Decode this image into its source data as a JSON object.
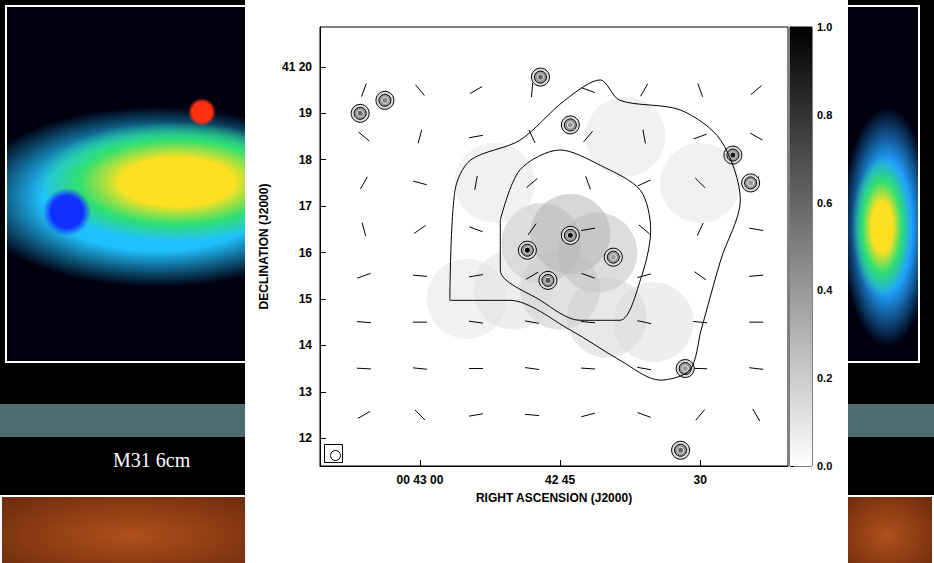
{
  "chart_data": {
    "type": "polarization_map",
    "xlabel": "RIGHT ASCENSION (J2000)",
    "ylabel": "DECLINATION (J2000)",
    "xlim": [
      70.7,
      20.6
    ],
    "xticks": [
      {
        "value": 60,
        "label": "00 43 00"
      },
      {
        "value": 45,
        "label": "42 45"
      },
      30
    ],
    "ylim": [
      11.4,
      20.86
    ],
    "yticks": [
      12,
      13,
      14,
      15,
      16,
      17,
      18,
      19,
      {
        "value": 20,
        "label": "41 20"
      }
    ],
    "colorbar": {
      "range": [
        0,
        1
      ],
      "ticks": [
        {
          "value": 0,
          "label": "0.0"
        },
        {
          "value": 0.2,
          "label": "0.2"
        },
        {
          "value": 0.4,
          "label": "0.4"
        },
        {
          "value": 0.6,
          "label": "0.6"
        },
        {
          "value": 0.8,
          "label": "0.8"
        },
        {
          "value": 1,
          "label": "1.0"
        }
      ]
    },
    "emission": [
      [
        43.9,
        16.4,
        0.35
      ],
      [
        47,
        16.2,
        0.3
      ],
      [
        41,
        16.0,
        0.3
      ],
      [
        45,
        15.2,
        0.25
      ],
      [
        40,
        14.6,
        0.2
      ],
      [
        50,
        15.2,
        0.15
      ],
      [
        35,
        14.5,
        0.15
      ],
      [
        52,
        17.5,
        0.12
      ],
      [
        38,
        18.5,
        0.12
      ],
      [
        30,
        17.5,
        0.12
      ],
      [
        55,
        15.0,
        0.12
      ]
    ],
    "sources": [
      [
        66.4,
        19.0,
        0.6
      ],
      [
        63.75,
        19.28,
        0.5
      ],
      [
        47.1,
        19.78,
        0.6
      ],
      [
        43.9,
        18.75,
        0.4
      ],
      [
        26.5,
        18.1,
        0.9
      ],
      [
        24.6,
        17.5,
        0.4
      ],
      [
        48.5,
        16.05,
        1.0
      ],
      [
        43.9,
        16.37,
        1.0
      ],
      [
        46.3,
        15.4,
        0.7
      ],
      [
        39.3,
        15.9,
        0.4
      ],
      [
        31.6,
        13.5,
        0.4
      ],
      [
        32.1,
        11.74,
        0.6
      ]
    ],
    "contours": [
      [
        [
          56.8,
          14.97
        ],
        [
          56.25,
          17.34
        ],
        [
          54.6,
          17.99
        ],
        [
          49.3,
          18.42
        ],
        [
          44.5,
          19.28
        ],
        [
          40.7,
          19.72
        ],
        [
          38.6,
          19.28
        ],
        [
          32.1,
          19.07
        ],
        [
          27.8,
          18.42
        ],
        [
          25.7,
          17.13
        ],
        [
          27.8,
          15.84
        ],
        [
          29.9,
          14.33
        ],
        [
          31.1,
          13.47
        ],
        [
          34.3,
          13.25
        ],
        [
          38.6,
          13.68
        ],
        [
          43.9,
          14.33
        ],
        [
          50.4,
          14.97
        ]
      ],
      [
        [
          51.4,
          16.7
        ],
        [
          49.3,
          17.78
        ],
        [
          45.0,
          18.21
        ],
        [
          40.7,
          17.88
        ],
        [
          36.4,
          17.34
        ],
        [
          35.3,
          16.48
        ],
        [
          36.4,
          15.41
        ],
        [
          38.6,
          14.54
        ],
        [
          42.9,
          14.54
        ],
        [
          47.1,
          14.97
        ],
        [
          51.4,
          15.62
        ]
      ]
    ],
    "vectors": [
      [
        66,
        19.5,
        70
      ],
      [
        60,
        19.5,
        -50
      ],
      [
        54,
        19.5,
        30
      ],
      [
        48,
        19.5,
        85
      ],
      [
        42,
        19.5,
        -20
      ],
      [
        36,
        19.5,
        60
      ],
      [
        30,
        19.5,
        -70
      ],
      [
        24,
        19.5,
        40
      ],
      [
        66,
        18.5,
        -40
      ],
      [
        60,
        18.5,
        75
      ],
      [
        54,
        18.5,
        10
      ],
      [
        48,
        18.5,
        -65
      ],
      [
        42,
        18.5,
        50
      ],
      [
        36,
        18.5,
        -80
      ],
      [
        30,
        18.5,
        20
      ],
      [
        24,
        18.5,
        -30
      ],
      [
        66,
        17.5,
        60
      ],
      [
        60,
        17.5,
        -15
      ],
      [
        54,
        17.5,
        80
      ],
      [
        48,
        17.5,
        40
      ],
      [
        42,
        17.5,
        -70
      ],
      [
        36,
        17.5,
        25
      ],
      [
        30,
        17.5,
        -45
      ],
      [
        24,
        17.5,
        70
      ],
      [
        66,
        16.5,
        -75
      ],
      [
        60,
        16.5,
        35
      ],
      [
        54,
        16.5,
        -20
      ],
      [
        48,
        16.5,
        55
      ],
      [
        42,
        16.5,
        10
      ],
      [
        36,
        16.5,
        -40
      ],
      [
        30,
        16.5,
        65
      ],
      [
        24,
        16.5,
        -10
      ],
      [
        66,
        15.5,
        20
      ],
      [
        60,
        15.5,
        -5
      ],
      [
        54,
        15.5,
        10
      ],
      [
        48,
        15.5,
        30
      ],
      [
        42,
        15.5,
        -20
      ],
      [
        36,
        15.5,
        15
      ],
      [
        30,
        15.5,
        -35
      ],
      [
        24,
        15.5,
        5
      ],
      [
        66,
        14.5,
        -5
      ],
      [
        60,
        14.5,
        0
      ],
      [
        54,
        14.5,
        -8
      ],
      [
        48,
        14.5,
        -10
      ],
      [
        42,
        14.5,
        -5
      ],
      [
        36,
        14.5,
        -12
      ],
      [
        30,
        14.5,
        -6
      ],
      [
        24,
        14.5,
        0
      ],
      [
        66,
        13.5,
        -3
      ],
      [
        60,
        13.5,
        -6
      ],
      [
        54,
        13.5,
        0
      ],
      [
        48,
        13.5,
        -8
      ],
      [
        42,
        13.5,
        -4
      ],
      [
        36,
        13.5,
        -10
      ],
      [
        30,
        13.5,
        -2
      ],
      [
        24,
        13.5,
        -7
      ],
      [
        66,
        12.5,
        30
      ],
      [
        60,
        12.5,
        -45
      ],
      [
        54,
        12.5,
        10
      ],
      [
        48,
        12.5,
        -5
      ],
      [
        42,
        12.5,
        15
      ],
      [
        36,
        12.5,
        -20
      ],
      [
        30,
        12.5,
        50
      ],
      [
        24,
        12.5,
        -60
      ]
    ]
  },
  "slide": {
    "text": "M31 6cm"
  }
}
